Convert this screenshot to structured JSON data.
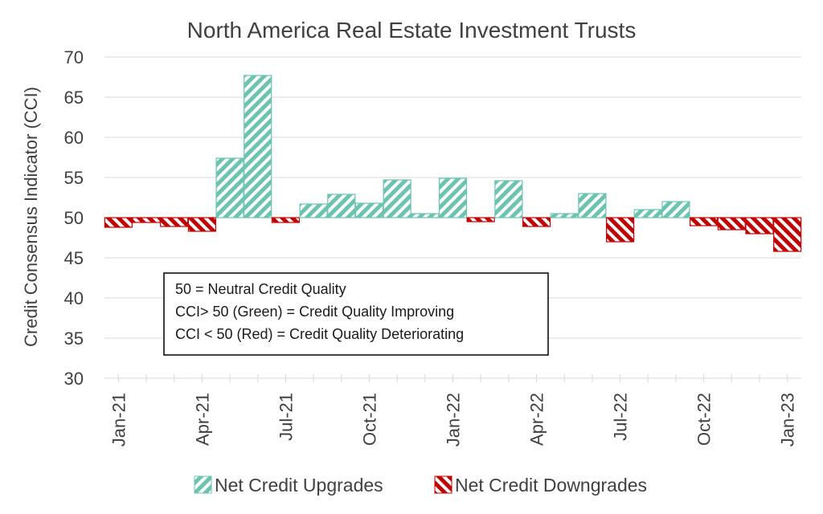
{
  "chart_data": {
    "type": "bar",
    "title": "North America Real Estate Investment Trusts",
    "ylabel": "Credit Consensus Indicator (CCI)",
    "xlabel": "",
    "ylim": [
      30,
      70
    ],
    "yticks": [
      30,
      35,
      40,
      45,
      50,
      55,
      60,
      65,
      70
    ],
    "baseline": 50,
    "grid": true,
    "legend_position": "bottom",
    "x_tick_labels": [
      "Jan-21",
      "Apr-21",
      "Jul-21",
      "Oct-21",
      "Jan-22",
      "Apr-22",
      "Jul-22",
      "Oct-22",
      "Jan-23"
    ],
    "categories": [
      "Jan-21",
      "Feb-21",
      "Mar-21",
      "Apr-21",
      "May-21",
      "Jun-21",
      "Jul-21",
      "Aug-21",
      "Sep-21",
      "Oct-21",
      "Nov-21",
      "Dec-21",
      "Jan-22",
      "Feb-22",
      "Mar-22",
      "Apr-22",
      "May-22",
      "Jun-22",
      "Jul-22",
      "Aug-22",
      "Sep-22",
      "Oct-22",
      "Nov-22",
      "Dec-22",
      "Jan-23"
    ],
    "values": [
      48.8,
      49.4,
      48.9,
      48.3,
      57.4,
      67.7,
      49.4,
      51.7,
      52.9,
      51.8,
      54.7,
      50.5,
      54.9,
      49.5,
      54.6,
      48.9,
      50.5,
      53.0,
      47.0,
      51.0,
      52.0,
      49.0,
      48.5,
      48.0,
      45.8
    ],
    "series": [
      {
        "name": "Net Credit Upgrades",
        "color": "#6cc3b0"
      },
      {
        "name": "Net Credit Downgrades",
        "color": "#c00000"
      }
    ],
    "annotation": [
      "50 = Neutral Credit Quality",
      "CCI> 50 (Green) = Credit Quality Improving",
      "CCI < 50 (Red) = Credit Quality Deteriorating"
    ]
  }
}
